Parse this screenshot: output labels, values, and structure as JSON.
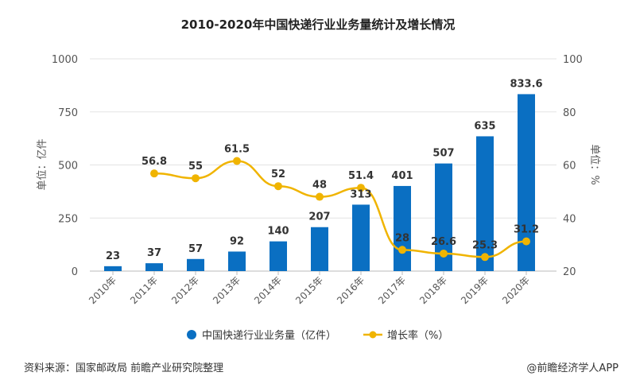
{
  "chart_data": {
    "type": "bar",
    "title": "2010-2020年中国快递行业业务量统计及增长情况",
    "categories": [
      "2010年",
      "2011年",
      "2012年",
      "2013年",
      "2014年",
      "2015年",
      "2016年",
      "2017年",
      "2018年",
      "2019年",
      "2020年"
    ],
    "series": [
      {
        "name": "中国快递行业业务量（亿件）",
        "type": "bar",
        "axis": "left",
        "color": "#0a6fc2",
        "values": [
          23,
          37,
          57,
          92,
          140,
          207,
          313,
          401,
          507,
          635,
          833.6
        ]
      },
      {
        "name": "增长率（%）",
        "type": "line",
        "axis": "right",
        "color": "#f0b400",
        "values": [
          null,
          56.8,
          55,
          61.5,
          52,
          48,
          51.4,
          28,
          26.6,
          25.3,
          31.2
        ]
      }
    ],
    "ylabel": "单位：亿件",
    "y2label": "单位：%",
    "ylim": [
      0,
      1000
    ],
    "y2lim": [
      20,
      100
    ],
    "yticks": [
      0,
      250,
      500,
      750,
      1000
    ],
    "y2ticks": [
      20,
      40,
      60,
      80,
      100
    ],
    "grid": true,
    "legend": "bottom"
  },
  "footer": {
    "source": "资料来源：国家邮政局 前瞻产业研究院整理",
    "credit": "@前瞻经济学人APP"
  }
}
